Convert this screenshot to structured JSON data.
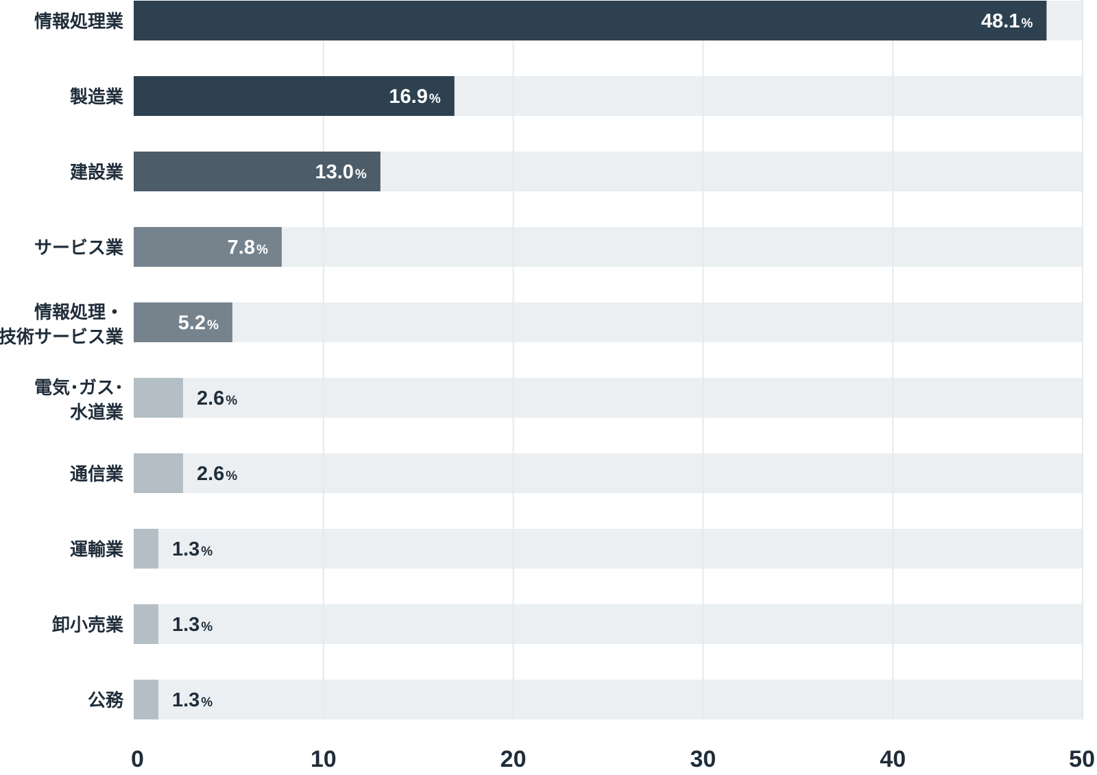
{
  "chart_data": {
    "type": "bar",
    "orientation": "horizontal",
    "categories": [
      [
        "情報処理業"
      ],
      [
        "製造業"
      ],
      [
        "建設業"
      ],
      [
        "サービス業"
      ],
      [
        "情報処理・",
        "技術サービス業"
      ],
      [
        "電気･ガス･",
        "水道業"
      ],
      [
        "通信業"
      ],
      [
        "運輸業"
      ],
      [
        "卸小売業"
      ],
      [
        "公務"
      ]
    ],
    "values": [
      48.1,
      16.9,
      13.0,
      7.8,
      5.2,
      2.6,
      2.6,
      1.3,
      1.3,
      1.3
    ],
    "value_labels": [
      "48.1",
      "16.9",
      "13.0",
      "7.8",
      "5.2",
      "2.6",
      "2.6",
      "1.3",
      "1.3",
      "1.3"
    ],
    "value_unit": "%",
    "bar_colors": [
      "#2d4150",
      "#2d4150",
      "#4d5c69",
      "#76838d",
      "#76838d",
      "#b4bec5",
      "#b4bec5",
      "#b4bec5",
      "#b4bec5",
      "#b4bec5"
    ],
    "label_colors": [
      "#ffffff",
      "#ffffff",
      "#ffffff",
      "#ffffff",
      "#ffffff",
      "#1f2d3a",
      "#1f2d3a",
      "#1f2d3a",
      "#1f2d3a",
      "#1f2d3a"
    ],
    "label_inside": [
      true,
      true,
      true,
      true,
      true,
      false,
      false,
      false,
      false,
      false
    ],
    "track_color": "#ebeff1",
    "grid_color": "#e6e9eb",
    "xlim": [
      0,
      50
    ],
    "xticks": [
      0,
      10,
      20,
      30,
      40,
      50
    ],
    "grid": true,
    "title": "",
    "xlabel": "",
    "ylabel": ""
  }
}
